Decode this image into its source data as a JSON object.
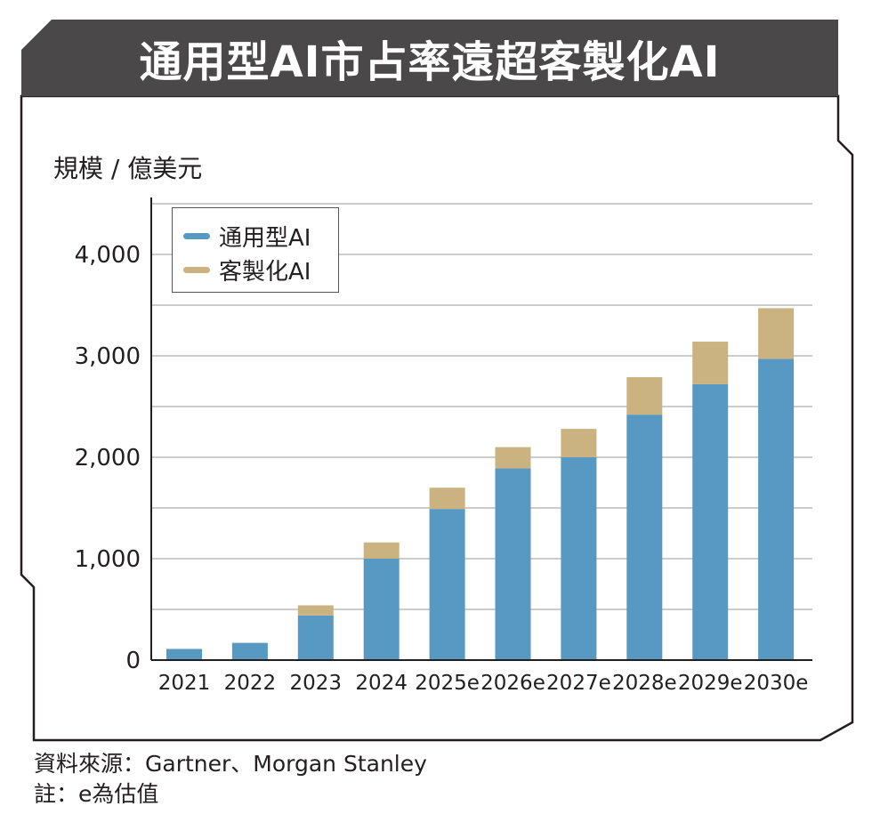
{
  "header": {
    "title": "通用型AI市占率遠超客製化AI"
  },
  "axis": {
    "unit_label": "規模 / 億美元"
  },
  "legend": {
    "items": [
      {
        "label": "通用型AI",
        "color": "#5899c3"
      },
      {
        "label": "客製化AI",
        "color": "#cbb281"
      }
    ]
  },
  "footer": {
    "source": "資料來源：Gartner、Morgan Stanley",
    "note": "註：e為估值"
  },
  "chart_data": {
    "type": "bar",
    "stacked": true,
    "categories": [
      "2021",
      "2022",
      "2023",
      "2024",
      "2025e",
      "2026e",
      "2027e",
      "2028e",
      "2029e",
      "2030e"
    ],
    "series": [
      {
        "name": "通用型AI",
        "color": "#5899c3",
        "values": [
          110,
          170,
          440,
          1000,
          1490,
          1890,
          2000,
          2420,
          2720,
          2970
        ]
      },
      {
        "name": "客製化AI",
        "color": "#cbb281",
        "values": [
          0,
          0,
          100,
          160,
          210,
          210,
          280,
          370,
          420,
          500
        ]
      }
    ],
    "ylabel": "規模 / 億美元",
    "ylim": [
      0,
      4500
    ],
    "yticks": [
      0,
      1000,
      2000,
      3000,
      4000
    ],
    "ytick_labels": [
      "0",
      "1,000",
      "2,000",
      "3,000",
      "4,000"
    ],
    "grid": true,
    "legend_position": "top-left"
  }
}
